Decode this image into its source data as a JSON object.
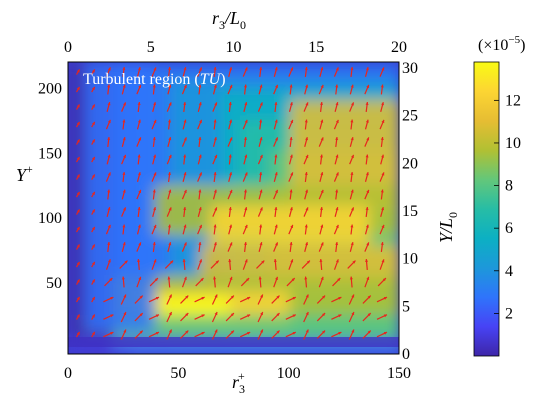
{
  "chart_data": {
    "type": "heatmap",
    "annotation": {
      "text": "Turbulent region (",
      "italic": "TU",
      "close": ")"
    },
    "x_bottom": {
      "label": "r",
      "sub": "3",
      "sup": "+",
      "ticks": [
        0,
        50,
        100,
        150
      ],
      "lim": [
        0,
        150
      ]
    },
    "x_top": {
      "label": "r",
      "sub": "3",
      "rest": "/L",
      "rest_sub": "0",
      "ticks": [
        0,
        5,
        10,
        15,
        20
      ],
      "lim": [
        0,
        20
      ]
    },
    "y_left": {
      "label": "Y",
      "sup": "+",
      "ticks": [
        50,
        100,
        150,
        200
      ],
      "lim": [
        0,
        225
      ]
    },
    "y_right": {
      "label": "Y/L",
      "sub": "0",
      "ticks": [
        0,
        5,
        10,
        15,
        20,
        25,
        30
      ],
      "lim": [
        0,
        30
      ]
    },
    "colorbar": {
      "exponent_label": "(×10",
      "exponent": "−5",
      "close": ")",
      "ticks": [
        2,
        4,
        6,
        8,
        10,
        12
      ],
      "lim": [
        0,
        13.8
      ]
    },
    "vector_color": "#e8261c",
    "colormap": [
      "#3e26a8",
      "#4743f5",
      "#2f74fb",
      "#1d98da",
      "#0cb0c3",
      "#27bda5",
      "#63c77a",
      "#b1c033",
      "#e6bd33",
      "#fcd533",
      "#f9fb14"
    ]
  }
}
